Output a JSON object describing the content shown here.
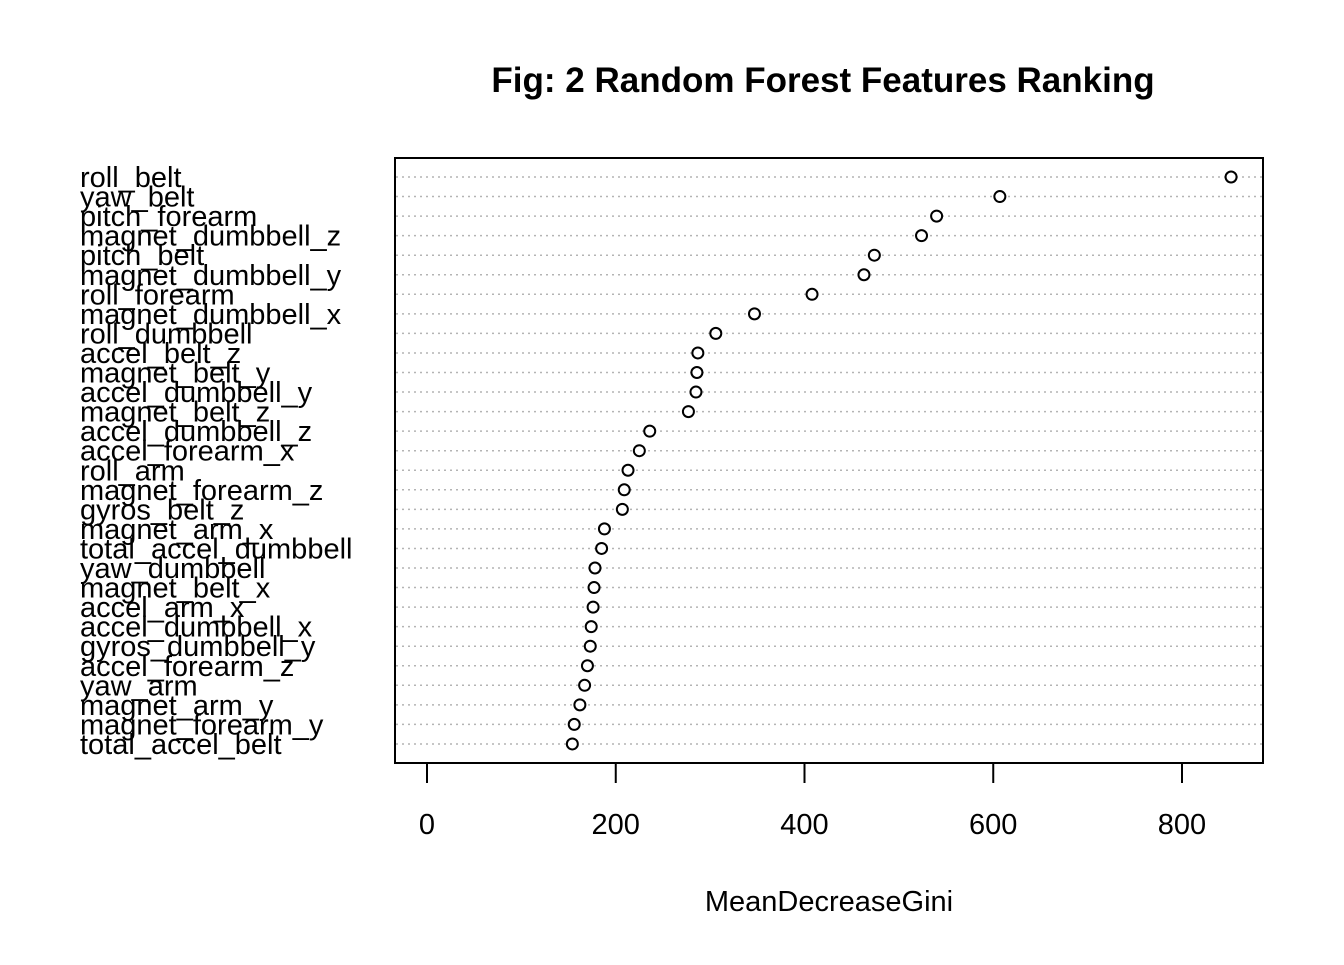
{
  "chart_data": {
    "type": "scatter",
    "subtype": "dotchart",
    "title": "Fig: 2 Random Forest Features Ranking",
    "xlabel": "MeanDecreaseGini",
    "ylabel": "",
    "xlim": [
      -18,
      882
    ],
    "xticks": [
      0,
      200,
      400,
      600,
      800
    ],
    "grid": "dotted horizontal lines per category",
    "legend": "none",
    "categories": [
      "roll_belt",
      "yaw_belt",
      "pitch_forearm",
      "magnet_dumbbell_z",
      "pitch_belt",
      "magnet_dumbbell_y",
      "roll_forearm",
      "magnet_dumbbell_x",
      "roll_dumbbell",
      "accel_belt_z",
      "magnet_belt_y",
      "accel_dumbbell_y",
      "magnet_belt_z",
      "accel_dumbbell_z",
      "accel_forearm_x",
      "roll_arm",
      "magnet_forearm_z",
      "gyros_belt_z",
      "magnet_arm_x",
      "total_accel_dumbbell",
      "yaw_dumbbell",
      "magnet_belt_x",
      "accel_arm_x",
      "accel_dumbbell_x",
      "gyros_dumbbell_y",
      "accel_forearm_z",
      "yaw_arm",
      "magnet_arm_y",
      "magnet_forearm_y",
      "total_accel_belt"
    ],
    "values": [
      852,
      607,
      540,
      524,
      474,
      463,
      408,
      347,
      306,
      287,
      286,
      285,
      277,
      236,
      225,
      213,
      209,
      207,
      188,
      185,
      178,
      177,
      176,
      174,
      173,
      170,
      167,
      162,
      156,
      154
    ]
  }
}
